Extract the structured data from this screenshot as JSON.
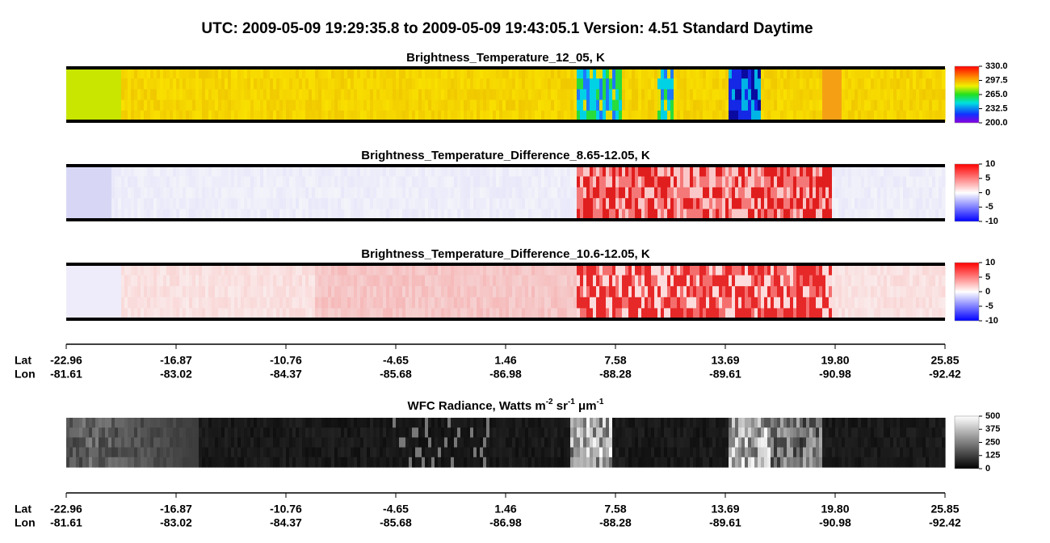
{
  "title": "UTC:  2009-05-09   19:29:35.8  to  2009-05-09   19:43:05.1    Version: 4.51  Standard Daytime",
  "panels": [
    {
      "title_parts": [
        "Brightness_Temperature_12_05, K"
      ],
      "colorbar_labels": [
        "330.0",
        "297.5",
        "265.0",
        "232.5",
        "200.0"
      ]
    },
    {
      "title_parts": [
        "Brightness_Temperature_Difference_8.65-12.05, K"
      ],
      "colorbar_labels": [
        "10",
        "5",
        "0",
        "-5",
        "-10"
      ]
    },
    {
      "title_parts": [
        "Brightness_Temperature_Difference_10.6-12.05, K"
      ],
      "colorbar_labels": [
        "10",
        "5",
        "0",
        "-5",
        "-10"
      ]
    },
    {
      "title_parts": [
        "WFC Radiance, Watts m",
        "-2",
        " sr",
        "-1",
        " μm",
        "-1"
      ],
      "colorbar_labels": [
        "500",
        "375",
        "250",
        "125",
        "0"
      ]
    }
  ],
  "axes": [
    {
      "rows": [
        {
          "name": "Lat",
          "labels": [
            "-22.96",
            "-16.87",
            "-10.76",
            "-4.65",
            "1.46",
            "7.58",
            "13.69",
            "19.80",
            "25.85"
          ]
        },
        {
          "name": "Lon",
          "labels": [
            "-81.61",
            "-83.02",
            "-84.37",
            "-85.68",
            "-86.98",
            "-88.28",
            "-89.61",
            "-90.98",
            "-92.42"
          ]
        }
      ]
    },
    {
      "rows": [
        {
          "name": "Lat",
          "labels": [
            "-22.96",
            "-16.87",
            "-10.76",
            "-4.65",
            "1.46",
            "7.58",
            "13.69",
            "19.80",
            "25.85"
          ]
        },
        {
          "name": "Lon",
          "labels": [
            "-81.61",
            "-83.02",
            "-84.37",
            "-85.68",
            "-86.98",
            "-88.28",
            "-89.61",
            "-90.98",
            "-92.42"
          ]
        }
      ]
    }
  ]
}
